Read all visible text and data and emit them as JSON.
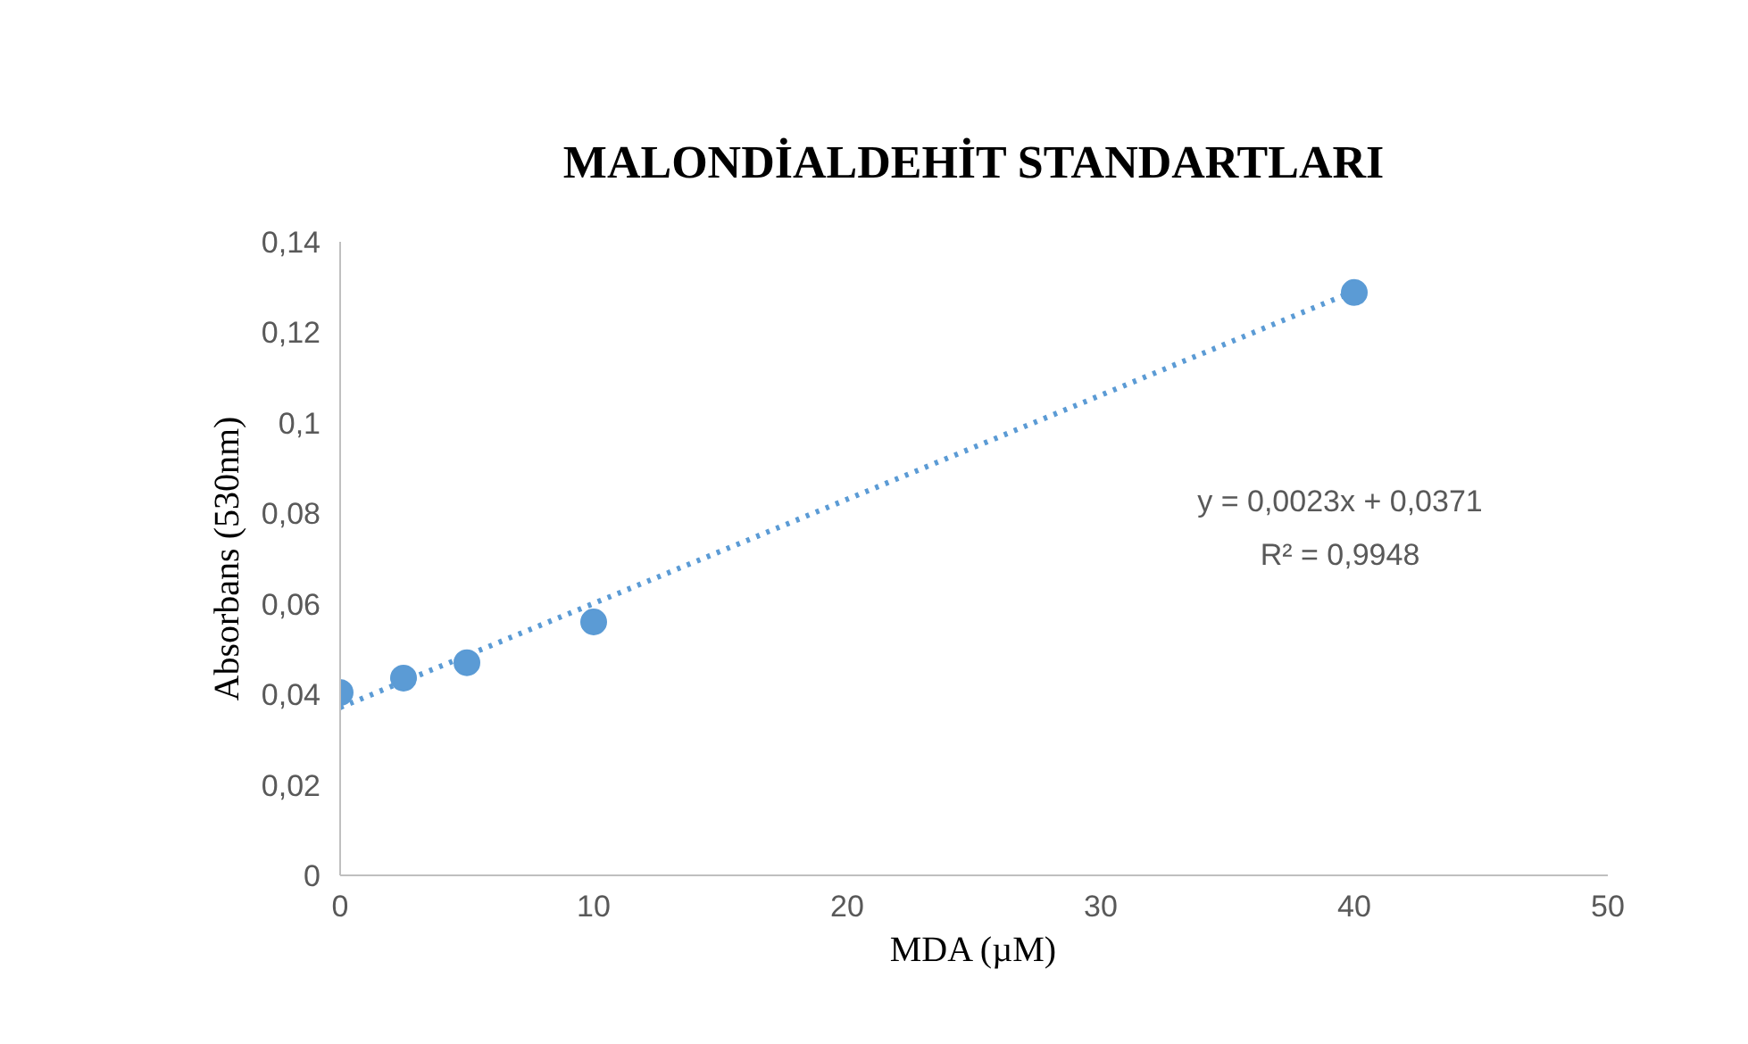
{
  "chart_data": {
    "type": "scatter",
    "title": "MALONDİALDEHİT STANDARTLARI",
    "xlabel": "MDA (µM)",
    "ylabel": "Absorbans (530nm)",
    "x": [
      0,
      2.5,
      5,
      10,
      40
    ],
    "series": [
      {
        "color": "#5b9bd5",
        "values": [
          0.0404,
          0.0436,
          0.047,
          0.056,
          0.1288
        ],
        "marker": "circle"
      },
      {
        "type": "line",
        "color": "#5b9bd5",
        "x": [
          0,
          40
        ],
        "values": [
          0.0371,
          0.1291
        ],
        "line_style": "dotted"
      }
    ],
    "xlim": [
      0,
      50
    ],
    "xticks": [
      0,
      10,
      20,
      30,
      40,
      50
    ],
    "ylim": [
      0,
      0.14
    ],
    "yticks": [
      0,
      {
        "value": 0.02,
        "label": "0,02"
      },
      {
        "value": 0.04,
        "label": "0,04"
      },
      {
        "value": 0.06,
        "label": "0,06"
      },
      {
        "value": 0.08,
        "label": "0,08"
      },
      {
        "value": 0.1,
        "label": "0,1"
      },
      {
        "value": 0.12,
        "label": "0,12"
      },
      {
        "value": 0.14,
        "label": "0,14"
      }
    ],
    "annotations": [
      "y = 0,0023x + 0,0371",
      "R² = 0,9948"
    ],
    "grid": false
  }
}
